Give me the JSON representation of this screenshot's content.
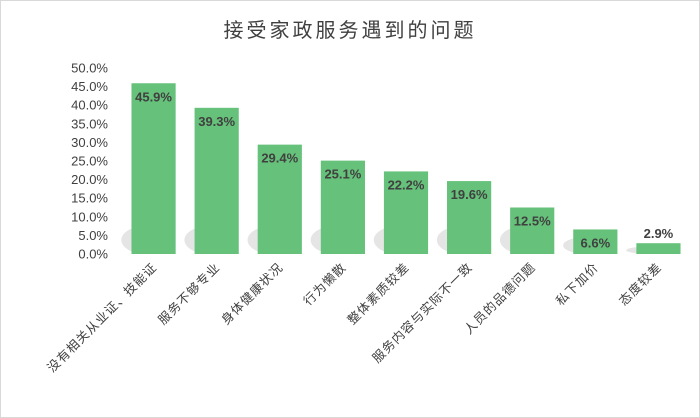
{
  "chart_data": {
    "type": "bar",
    "title": "接受家政服务遇到的问题",
    "categories": [
      "没有相关从业证、技能证",
      "服务不够专业",
      "身体健康状况",
      "行为懒散",
      "整体素质较差",
      "服务内容与实际不一致",
      "人员的品德问题",
      "私下加价",
      "态度较差"
    ],
    "values": [
      45.9,
      39.3,
      29.4,
      25.1,
      22.2,
      19.6,
      12.5,
      6.6,
      2.9
    ],
    "data_labels": [
      "45.9%",
      "39.3%",
      "29.4%",
      "25.1%",
      "22.2%",
      "19.6%",
      "12.5%",
      "6.6%",
      "2.9%"
    ],
    "y_ticks": [
      "0.0%",
      "5.0%",
      "10.0%",
      "15.0%",
      "20.0%",
      "25.0%",
      "30.0%",
      "35.0%",
      "40.0%",
      "45.0%",
      "50.0%"
    ],
    "ylim": [
      0,
      50
    ],
    "grid": false,
    "bar_color": "#66c17a"
  }
}
